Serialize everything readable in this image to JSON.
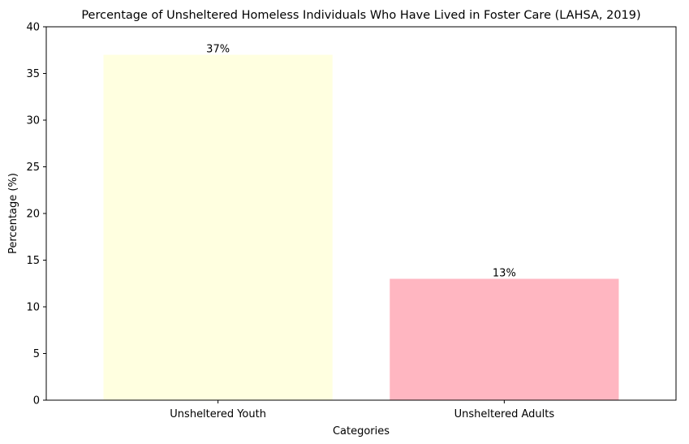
{
  "chart_data": {
    "type": "bar",
    "title": "Percentage of Unsheltered Homeless Individuals Who Have Lived in Foster Care (LAHSA, 2019)",
    "xlabel": "Categories",
    "ylabel": "Percentage (%)",
    "categories": [
      "Unsheltered Youth",
      "Unsheltered Adults"
    ],
    "values": [
      37,
      13
    ],
    "data_labels": [
      "37%",
      "13%"
    ],
    "colors": [
      "#ffffe0",
      "#ffb6c1"
    ],
    "ylim": [
      0,
      40
    ],
    "yticks": [
      0,
      5,
      10,
      15,
      20,
      25,
      30,
      35,
      40
    ],
    "ytick_labels": [
      "0",
      "5",
      "10",
      "15",
      "20",
      "25",
      "30",
      "35",
      "40"
    ],
    "grid": false,
    "legend": "none"
  }
}
